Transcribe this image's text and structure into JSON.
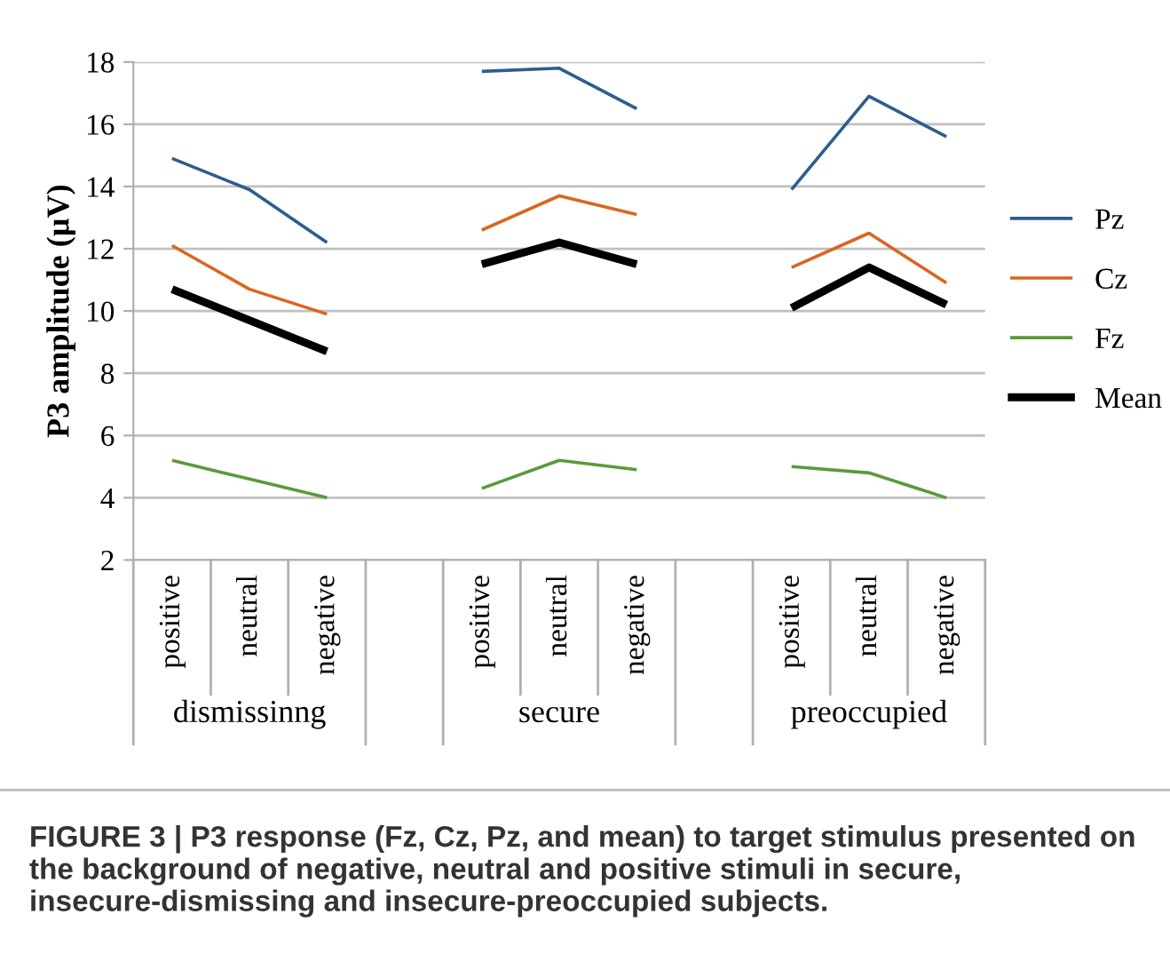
{
  "chart_data": {
    "type": "line",
    "ylabel": "P3 amplitude (µV)",
    "categories": [
      "positive",
      "neutral",
      "negative",
      null,
      "positive",
      "neutral",
      "negative",
      null,
      "positive",
      "neutral",
      "negative"
    ],
    "series": [
      {
        "name": "Pz",
        "color": "#2e5d8e",
        "values": [
          14.9,
          13.9,
          12.2,
          null,
          17.7,
          17.8,
          16.5,
          null,
          13.9,
          16.9,
          15.6
        ]
      },
      {
        "name": "Cz",
        "color": "#d9661f",
        "values": [
          12.1,
          10.7,
          9.9,
          null,
          12.6,
          13.7,
          13.1,
          null,
          11.4,
          12.5,
          10.9
        ]
      },
      {
        "name": "Fz",
        "color": "#5b9a3a",
        "values": [
          5.2,
          4.6,
          4.0,
          null,
          4.3,
          5.2,
          4.9,
          null,
          5.0,
          4.8,
          4.0
        ]
      },
      {
        "name": "Mean",
        "color": "#000000",
        "values": [
          10.7,
          9.7,
          8.7,
          null,
          11.5,
          12.2,
          11.5,
          null,
          10.1,
          11.4,
          10.2
        ]
      }
    ],
    "ylim": [
      2,
      18
    ],
    "yticks": [
      2,
      4,
      6,
      8,
      10,
      12,
      14,
      16,
      18
    ],
    "grid": "y",
    "legend": "right",
    "marker": "none",
    "line_style": "solid",
    "annotations": [
      "dismissinng",
      "secure",
      "preoccupied",
      "FIGURE 3 | P3 response (Fz, Cz, Pz, and mean) to target stimulus presented on the background of negative, neutral and positive stimuli in secure, insecure-dismissing and insecure-preoccupied subjects."
    ]
  }
}
